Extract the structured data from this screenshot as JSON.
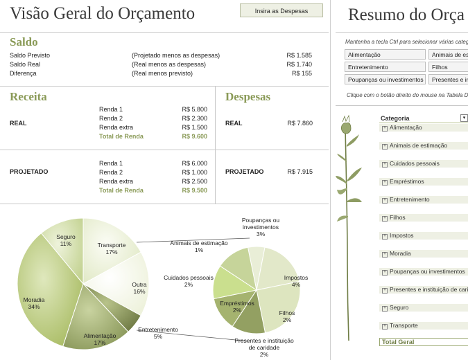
{
  "left": {
    "title": "Visão Geral do Orçamento",
    "enter_expenses_button": "Insira as Despesas",
    "saldo": {
      "heading": "Saldo",
      "rows": [
        {
          "label": "Saldo Previsto",
          "note": "(Projetado menos as despesas)",
          "value": "R$ 1.585"
        },
        {
          "label": "Saldo Real",
          "note": "(Real menos as despesas)",
          "value": "R$ 1.740"
        },
        {
          "label": "Diferença",
          "note": "(Real menos previsto)",
          "value": "R$ 155"
        }
      ]
    },
    "receita": {
      "heading": "Receita",
      "real": {
        "label": "REAL",
        "items": [
          {
            "name": "Renda 1",
            "value": "R$ 5.800"
          },
          {
            "name": "Renda 2",
            "value": "R$ 2.300"
          },
          {
            "name": "Renda extra",
            "value": "R$ 1.500"
          }
        ],
        "total_label": "Total de Renda",
        "total_value": "R$ 9.600"
      },
      "projetado": {
        "label": "PROJETADO",
        "items": [
          {
            "name": "Renda 1",
            "value": "R$ 6.000"
          },
          {
            "name": "Renda 2",
            "value": "R$ 1.000"
          },
          {
            "name": "Renda extra",
            "value": "R$ 2.500"
          }
        ],
        "total_label": "Total de Renda",
        "total_value": "R$ 9.500"
      }
    },
    "despesas": {
      "heading": "Despesas",
      "real_label": "REAL",
      "real_value": "R$ 7.860",
      "projetado_label": "PROJETADO",
      "projetado_value": "R$ 7.915"
    }
  },
  "right": {
    "title": "Resumo do Orça",
    "slicer_hint": "Mantenha a tecla Ctrl para selecionar várias categ",
    "slicer_items": [
      "Alimentação",
      "Animais de esti",
      "Entretenimento",
      "Filhos",
      "Poupanças ou investimentos",
      "Presentes e inst"
    ],
    "pivot_hint": "Clique com o botão direito do mouse na Tabela D",
    "pivot_header": "Categoria",
    "categories": [
      "Alimentação",
      "Animais de estimação",
      "Cuidados pessoais",
      "Empréstimos",
      "Entretenimento",
      "Filhos",
      "Impostos",
      "Moradia",
      "Poupanças ou investimentos",
      "Presentes e instituição de caridade",
      "Seguro",
      "Transporte"
    ],
    "total_label": "Total Geral"
  },
  "chart_data": {
    "type": "pie",
    "subtype": "pie-of-pie",
    "slices": [
      {
        "label": "Moradia",
        "value": 34
      },
      {
        "label": "Seguro",
        "value": 11
      },
      {
        "label": "Transporte",
        "value": 17
      },
      {
        "label": "Outra",
        "value": 16
      },
      {
        "label": "Entretenimento",
        "value": 5
      },
      {
        "label": "Alimentação",
        "value": 17
      }
    ],
    "secondary_slices": [
      {
        "label": "Animais de estimação",
        "value": 1
      },
      {
        "label": "Poupanças ou investimentos",
        "value": 3
      },
      {
        "label": "Impostos",
        "value": 4
      },
      {
        "label": "Filhos",
        "value": 2
      },
      {
        "label": "Presentes e instituição de caridade",
        "value": 2
      },
      {
        "label": "Empréstimos",
        "value": 2
      },
      {
        "label": "Cuidados pessoais",
        "value": 2
      }
    ],
    "labels": {
      "moradia": {
        "name": "Moradia",
        "pct": "34%"
      },
      "seguro": {
        "name": "Seguro",
        "pct": "11%"
      },
      "transporte": {
        "name": "Transporte",
        "pct": "17%"
      },
      "outra": {
        "name": "Outra",
        "pct": "16%"
      },
      "entretenimento": {
        "name": "Entretenimento",
        "pct": "5%"
      },
      "alimentacao": {
        "name": "Alimentação",
        "pct": "17%"
      },
      "animais": {
        "name": "Animais de estimação",
        "pct": "1%"
      },
      "poupancas": {
        "name1": "Poupanças ou",
        "name2": "investimentos",
        "pct": "3%"
      },
      "impostos": {
        "name": "Impostos",
        "pct": "4%"
      },
      "filhos": {
        "name": "Filhos",
        "pct": "2%"
      },
      "presentes": {
        "name1": "Presentes e instituição",
        "name2": "de caridade",
        "pct": "2%"
      },
      "emprestimos": {
        "name": "Empréstimos",
        "pct": "2%"
      },
      "cuidados": {
        "name": "Cuidados pessoais",
        "pct": "2%"
      }
    },
    "colors": {
      "Moradia": "#b6c77d",
      "Seguro": "#cfdaa3",
      "Transporte": "#eef2dd",
      "Outra": "#f7f9ee",
      "Entretenimento": "#8f9a62",
      "Alimentação": "#a3af77"
    },
    "secondary_colors": [
      "#e9eed7",
      "#e2e8c9",
      "#dde5bf",
      "#93a062",
      "#a5b36f",
      "#cadf8e",
      "#c6d49a"
    ]
  }
}
